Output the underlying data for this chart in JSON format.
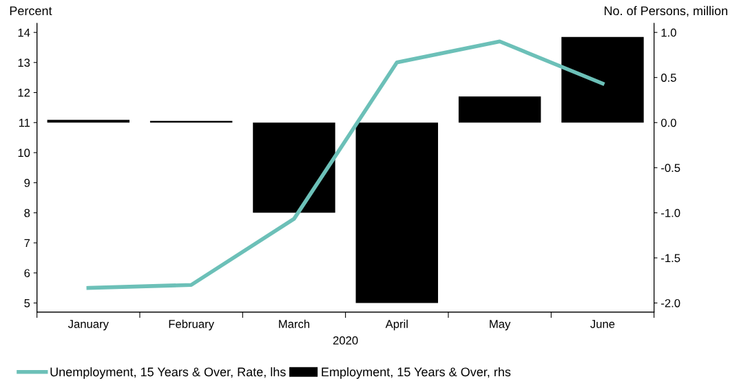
{
  "chart_data": {
    "type": "bar",
    "categories": [
      "January",
      "February",
      "March",
      "April",
      "May",
      "June"
    ],
    "xlabel": "2020",
    "ylabel": "Percent",
    "y2label": "No. of Persons, million",
    "series": [
      {
        "name": "Unemployment, 15 Years & Over, Rate, lhs",
        "type": "line",
        "color": "#6cc0b8",
        "values": [
          5.5,
          5.6,
          7.8,
          13.0,
          13.7,
          12.3
        ]
      },
      {
        "name": "Employment, 15 Years & Over, rhs",
        "axis": "y2",
        "color": "#000000",
        "values": [
          0.03,
          0.02,
          -1.0,
          -2.0,
          0.29,
          0.95
        ]
      }
    ],
    "ylim": [
      4.7,
      14.3
    ],
    "yticks": [
      5,
      6,
      7,
      8,
      9,
      10,
      11,
      12,
      13,
      14
    ],
    "y2lim": [
      -2.1,
      1.1
    ],
    "y2ticks": [
      {
        "value": -2.0,
        "label": "-2.0"
      },
      {
        "value": -1.5,
        "label": "-1.5"
      },
      {
        "value": -1.0,
        "label": "-1.0"
      },
      {
        "value": -0.5,
        "label": "-0.5"
      },
      {
        "value": 0.0,
        "label": "0.0"
      },
      {
        "value": 0.5,
        "label": "0.5"
      },
      {
        "value": 1.0,
        "label": "1.0"
      }
    ],
    "legend": "bottom",
    "grid": false,
    "marker": "none",
    "line_style": "solid"
  }
}
